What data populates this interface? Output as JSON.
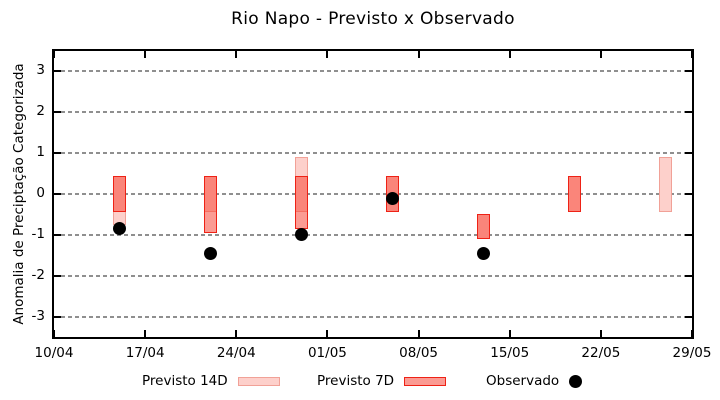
{
  "chart_data": {
    "type": "bar",
    "title": "Rio Napo - Previsto x Observado",
    "xlabel": "",
    "ylabel": "Anomalia de Preciptação Categorizada",
    "ylim": [
      -3.5,
      3.5
    ],
    "y_ticks": [
      3,
      2,
      1,
      0,
      -1,
      -2,
      -3
    ],
    "grid": "horizontal-dashed",
    "grid_color": "#8f8f8f",
    "axis_color": "#000000",
    "xlim_days": [
      0,
      49
    ],
    "x_ticks": [
      {
        "day": 0,
        "label": "10/04"
      },
      {
        "day": 7,
        "label": "17/04"
      },
      {
        "day": 14,
        "label": "24/04"
      },
      {
        "day": 21,
        "label": "01/05"
      },
      {
        "day": 28,
        "label": "08/05"
      },
      {
        "day": 35,
        "label": "15/05"
      },
      {
        "day": 42,
        "label": "22/05"
      },
      {
        "day": 49,
        "label": "29/05"
      }
    ],
    "legend_position": "bottom",
    "series": [
      {
        "name": "Previsto 14D",
        "type": "range-bar",
        "fill": "#fdd0cb",
        "border": "#f1a197",
        "points": [
          {
            "date": "15/04",
            "day": 5,
            "low": -0.75,
            "high": 0.45
          },
          {
            "date": "22/04",
            "day": 12,
            "low": -0.45,
            "high": 0.45
          },
          {
            "date": "29/04",
            "day": 19,
            "low": -0.45,
            "high": 0.9
          },
          {
            "date": "06/05",
            "day": 26,
            "low": -0.45,
            "high": 0.45
          },
          {
            "date": "13/05",
            "day": 33,
            "low": -1.1,
            "high": -0.5
          },
          {
            "date": "20/05",
            "day": 40,
            "low": -0.45,
            "high": 0.45
          },
          {
            "date": "27/05",
            "day": 47,
            "low": -0.45,
            "high": 0.9
          }
        ]
      },
      {
        "name": "Previsto 7D",
        "type": "range-bar",
        "fill": "rgba(247,66,51,0.53)",
        "legend_fill": "#fb9b93",
        "border": "#ee2216",
        "points": [
          {
            "date": "15/04",
            "day": 5,
            "low": -0.45,
            "high": 0.45
          },
          {
            "date": "22/04",
            "day": 12,
            "low": -0.95,
            "high": 0.45
          },
          {
            "date": "29/04",
            "day": 19,
            "low": -0.85,
            "high": 0.45
          },
          {
            "date": "06/05",
            "day": 26,
            "low": -0.45,
            "high": 0.45
          },
          {
            "date": "13/05",
            "day": 33,
            "low": -1.1,
            "high": -0.5
          },
          {
            "date": "20/05",
            "day": 40,
            "low": -0.45,
            "high": 0.45
          }
        ]
      },
      {
        "name": "Observado",
        "type": "scatter",
        "color": "#000000",
        "points": [
          {
            "date": "15/04",
            "day": 5,
            "value": -0.85
          },
          {
            "date": "22/04",
            "day": 12,
            "value": -1.45
          },
          {
            "date": "29/04",
            "day": 19,
            "value": -1.0
          },
          {
            "date": "06/05",
            "day": 26,
            "value": -0.1
          },
          {
            "date": "13/05",
            "day": 33,
            "value": -1.45
          }
        ]
      }
    ]
  }
}
